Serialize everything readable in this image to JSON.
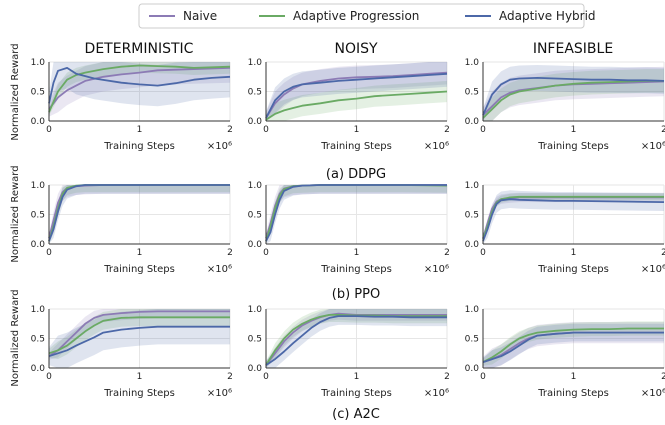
{
  "legend": {
    "placement": "top-center",
    "entries": [
      {
        "name": "Naive",
        "color": "#8c7bb5"
      },
      {
        "name": "Adaptive Progression",
        "color": "#6aaa64"
      },
      {
        "name": "Adaptive Hybrid",
        "color": "#4c68a8"
      }
    ]
  },
  "columns": [
    "DETERMINISTIC",
    "NOISY",
    "INFEASIBLE"
  ],
  "row_captions": [
    "(a) DDPG",
    "(b) PPO",
    "(c) A2C"
  ],
  "ylabel": "Normalized Reward",
  "xlabel": "Training Steps",
  "x_scale_label": "×10⁶",
  "xticks": [
    "0",
    "1",
    "2"
  ],
  "yticks": [
    "0.0",
    "0.5",
    "1.0"
  ],
  "chart_data": {
    "type": "line",
    "grid": true,
    "xlim": [
      0,
      2
    ],
    "ylim": [
      0,
      1
    ],
    "x_units": "training steps (×10⁶)",
    "series_order": [
      "Naive",
      "Adaptive Progression",
      "Adaptive Hybrid"
    ],
    "panels": [
      {
        "row": 0,
        "col": 0,
        "series": [
          {
            "name": "Naive",
            "x": [
              0,
              0.1,
              0.2,
              0.3,
              0.4,
              0.6,
              0.8,
              1.0,
              1.2,
              1.4,
              1.6,
              1.8,
              2.0
            ],
            "y": [
              0.2,
              0.4,
              0.52,
              0.6,
              0.68,
              0.75,
              0.79,
              0.82,
              0.86,
              0.87,
              0.88,
              0.89,
              0.9
            ],
            "spread": 0.25
          },
          {
            "name": "Adaptive Progression",
            "x": [
              0,
              0.1,
              0.2,
              0.3,
              0.4,
              0.6,
              0.8,
              1.0,
              1.2,
              1.4,
              1.6,
              1.8,
              2.0
            ],
            "y": [
              0.15,
              0.5,
              0.7,
              0.78,
              0.82,
              0.88,
              0.92,
              0.94,
              0.93,
              0.92,
              0.9,
              0.91,
              0.92
            ],
            "spread": 0.12
          },
          {
            "name": "Adaptive Hybrid",
            "x": [
              0,
              0.05,
              0.1,
              0.2,
              0.3,
              0.5,
              0.8,
              1.0,
              1.2,
              1.4,
              1.6,
              1.8,
              2.0
            ],
            "y": [
              0.3,
              0.65,
              0.85,
              0.9,
              0.8,
              0.72,
              0.65,
              0.62,
              0.6,
              0.64,
              0.7,
              0.73,
              0.75
            ],
            "spread": 0.35
          }
        ]
      },
      {
        "row": 0,
        "col": 1,
        "series": [
          {
            "name": "Naive",
            "x": [
              0,
              0.1,
              0.2,
              0.3,
              0.4,
              0.6,
              0.8,
              1.0,
              1.2,
              1.4,
              1.6,
              1.8,
              2.0
            ],
            "y": [
              0.05,
              0.3,
              0.45,
              0.55,
              0.62,
              0.68,
              0.72,
              0.74,
              0.75,
              0.76,
              0.78,
              0.8,
              0.82
            ],
            "spread": 0.2
          },
          {
            "name": "Adaptive Progression",
            "x": [
              0,
              0.1,
              0.2,
              0.3,
              0.4,
              0.6,
              0.8,
              1.0,
              1.2,
              1.4,
              1.6,
              1.8,
              2.0
            ],
            "y": [
              0.02,
              0.12,
              0.18,
              0.22,
              0.26,
              0.3,
              0.35,
              0.38,
              0.42,
              0.44,
              0.46,
              0.48,
              0.5
            ],
            "spread": 0.18
          },
          {
            "name": "Adaptive Hybrid",
            "x": [
              0,
              0.1,
              0.2,
              0.3,
              0.4,
              0.6,
              0.8,
              1.0,
              1.2,
              1.4,
              1.6,
              1.8,
              2.0
            ],
            "y": [
              0.05,
              0.35,
              0.5,
              0.58,
              0.62,
              0.65,
              0.68,
              0.7,
              0.72,
              0.74,
              0.76,
              0.78,
              0.8
            ],
            "spread": 0.22
          }
        ]
      },
      {
        "row": 0,
        "col": 2,
        "series": [
          {
            "name": "Naive",
            "x": [
              0,
              0.1,
              0.2,
              0.3,
              0.4,
              0.6,
              0.8,
              1.0,
              1.2,
              1.4,
              1.6,
              1.8,
              2.0
            ],
            "y": [
              0.1,
              0.25,
              0.4,
              0.48,
              0.52,
              0.56,
              0.6,
              0.62,
              0.63,
              0.64,
              0.65,
              0.66,
              0.67
            ],
            "spread": 0.25
          },
          {
            "name": "Adaptive Progression",
            "x": [
              0,
              0.1,
              0.2,
              0.3,
              0.4,
              0.6,
              0.8,
              1.0,
              1.2,
              1.4,
              1.6,
              1.8,
              2.0
            ],
            "y": [
              0.05,
              0.2,
              0.35,
              0.45,
              0.5,
              0.55,
              0.6,
              0.63,
              0.65,
              0.66,
              0.67,
              0.68,
              0.68
            ],
            "spread": 0.2
          },
          {
            "name": "Adaptive Hybrid",
            "x": [
              0,
              0.1,
              0.2,
              0.3,
              0.4,
              0.6,
              0.8,
              1.0,
              1.2,
              1.4,
              1.6,
              1.8,
              2.0
            ],
            "y": [
              0.1,
              0.45,
              0.62,
              0.7,
              0.72,
              0.73,
              0.72,
              0.71,
              0.7,
              0.7,
              0.69,
              0.69,
              0.68
            ],
            "spread": 0.22
          }
        ]
      },
      {
        "row": 1,
        "col": 0,
        "series": [
          {
            "name": "Naive",
            "x": [
              0,
              0.05,
              0.1,
              0.15,
              0.2,
              0.3,
              0.4,
              0.6,
              0.8,
              1.0,
              1.5,
              2.0
            ],
            "y": [
              0.1,
              0.4,
              0.7,
              0.88,
              0.95,
              0.98,
              0.99,
              1.0,
              1.0,
              1.0,
              1.0,
              1.0
            ],
            "spread": 0.15
          },
          {
            "name": "Adaptive Progression",
            "x": [
              0,
              0.05,
              0.1,
              0.15,
              0.2,
              0.3,
              0.4,
              0.6,
              0.8,
              1.0,
              1.5,
              2.0
            ],
            "y": [
              0.05,
              0.3,
              0.6,
              0.85,
              0.95,
              0.99,
              1.0,
              1.0,
              1.0,
              1.0,
              1.0,
              1.0
            ],
            "spread": 0.12
          },
          {
            "name": "Adaptive Hybrid",
            "x": [
              0,
              0.05,
              0.1,
              0.15,
              0.2,
              0.3,
              0.4,
              0.6,
              0.8,
              1.0,
              1.5,
              2.0
            ],
            "y": [
              0.05,
              0.25,
              0.55,
              0.8,
              0.92,
              0.98,
              1.0,
              1.0,
              1.0,
              1.0,
              1.0,
              1.0
            ],
            "spread": 0.15
          }
        ]
      },
      {
        "row": 1,
        "col": 1,
        "series": [
          {
            "name": "Naive",
            "x": [
              0,
              0.05,
              0.1,
              0.15,
              0.2,
              0.3,
              0.4,
              0.6,
              0.8,
              1.0,
              1.5,
              2.0
            ],
            "y": [
              0.1,
              0.35,
              0.65,
              0.85,
              0.94,
              0.98,
              0.99,
              1.0,
              1.0,
              1.0,
              1.0,
              1.0
            ],
            "spread": 0.15
          },
          {
            "name": "Adaptive Progression",
            "x": [
              0,
              0.05,
              0.1,
              0.15,
              0.2,
              0.3,
              0.4,
              0.6,
              0.8,
              1.0,
              1.5,
              2.0
            ],
            "y": [
              0.05,
              0.3,
              0.6,
              0.82,
              0.93,
              0.98,
              0.99,
              1.0,
              1.0,
              1.0,
              1.0,
              0.99
            ],
            "spread": 0.12
          },
          {
            "name": "Adaptive Hybrid",
            "x": [
              0,
              0.05,
              0.1,
              0.15,
              0.2,
              0.3,
              0.4,
              0.6,
              0.8,
              1.0,
              1.5,
              2.0
            ],
            "y": [
              0.05,
              0.2,
              0.5,
              0.75,
              0.9,
              0.97,
              0.99,
              1.0,
              1.0,
              1.0,
              1.0,
              1.0
            ],
            "spread": 0.15
          }
        ]
      },
      {
        "row": 1,
        "col": 2,
        "series": [
          {
            "name": "Naive",
            "x": [
              0,
              0.05,
              0.1,
              0.15,
              0.2,
              0.3,
              0.4,
              0.6,
              0.8,
              1.0,
              1.5,
              2.0
            ],
            "y": [
              0.1,
              0.35,
              0.6,
              0.72,
              0.76,
              0.78,
              0.79,
              0.79,
              0.79,
              0.79,
              0.79,
              0.79
            ],
            "spread": 0.08
          },
          {
            "name": "Adaptive Progression",
            "x": [
              0,
              0.05,
              0.1,
              0.15,
              0.2,
              0.3,
              0.4,
              0.6,
              0.8,
              1.0,
              1.5,
              2.0
            ],
            "y": [
              0.08,
              0.3,
              0.55,
              0.7,
              0.76,
              0.79,
              0.8,
              0.8,
              0.8,
              0.8,
              0.8,
              0.8
            ],
            "spread": 0.06
          },
          {
            "name": "Adaptive Hybrid",
            "x": [
              0,
              0.05,
              0.1,
              0.15,
              0.2,
              0.3,
              0.4,
              0.6,
              0.8,
              1.0,
              1.5,
              2.0
            ],
            "y": [
              0.05,
              0.25,
              0.5,
              0.68,
              0.74,
              0.76,
              0.75,
              0.74,
              0.73,
              0.73,
              0.72,
              0.71
            ],
            "spread": 0.15
          }
        ]
      },
      {
        "row": 2,
        "col": 0,
        "series": [
          {
            "name": "Naive",
            "x": [
              0,
              0.1,
              0.2,
              0.3,
              0.4,
              0.5,
              0.6,
              0.8,
              1.0,
              1.2,
              1.4,
              1.6,
              1.8,
              2.0
            ],
            "y": [
              0.2,
              0.3,
              0.45,
              0.6,
              0.75,
              0.85,
              0.9,
              0.93,
              0.95,
              0.96,
              0.96,
              0.96,
              0.96,
              0.96
            ],
            "spread": 0.12
          },
          {
            "name": "Adaptive Progression",
            "x": [
              0,
              0.1,
              0.2,
              0.3,
              0.4,
              0.5,
              0.6,
              0.8,
              1.0,
              1.2,
              1.4,
              1.6,
              1.8,
              2.0
            ],
            "y": [
              0.25,
              0.3,
              0.38,
              0.5,
              0.62,
              0.72,
              0.8,
              0.85,
              0.86,
              0.86,
              0.86,
              0.86,
              0.86,
              0.86
            ],
            "spread": 0.15
          },
          {
            "name": "Adaptive Hybrid",
            "x": [
              0,
              0.1,
              0.2,
              0.3,
              0.4,
              0.5,
              0.6,
              0.8,
              1.0,
              1.2,
              1.4,
              1.6,
              1.8,
              2.0
            ],
            "y": [
              0.2,
              0.25,
              0.3,
              0.38,
              0.45,
              0.52,
              0.6,
              0.65,
              0.68,
              0.7,
              0.7,
              0.7,
              0.7,
              0.7
            ],
            "spread": 0.3
          }
        ]
      },
      {
        "row": 2,
        "col": 1,
        "series": [
          {
            "name": "Naive",
            "x": [
              0,
              0.1,
              0.2,
              0.3,
              0.4,
              0.5,
              0.6,
              0.7,
              0.8,
              1.0,
              1.2,
              1.4,
              1.6,
              1.8,
              2.0
            ],
            "y": [
              0.05,
              0.25,
              0.45,
              0.6,
              0.72,
              0.8,
              0.86,
              0.9,
              0.92,
              0.9,
              0.9,
              0.9,
              0.9,
              0.9,
              0.9
            ],
            "spread": 0.1
          },
          {
            "name": "Adaptive Progression",
            "x": [
              0,
              0.1,
              0.2,
              0.3,
              0.4,
              0.5,
              0.6,
              0.7,
              0.8,
              1.0,
              1.2,
              1.4,
              1.6,
              1.8,
              2.0
            ],
            "y": [
              0.05,
              0.3,
              0.5,
              0.65,
              0.75,
              0.82,
              0.87,
              0.9,
              0.9,
              0.89,
              0.89,
              0.88,
              0.88,
              0.88,
              0.88
            ],
            "spread": 0.12
          },
          {
            "name": "Adaptive Hybrid",
            "x": [
              0,
              0.1,
              0.2,
              0.3,
              0.4,
              0.5,
              0.6,
              0.7,
              0.8,
              1.0,
              1.2,
              1.4,
              1.6,
              1.8,
              2.0
            ],
            "y": [
              0.05,
              0.15,
              0.28,
              0.42,
              0.55,
              0.68,
              0.78,
              0.85,
              0.88,
              0.88,
              0.87,
              0.87,
              0.86,
              0.86,
              0.86
            ],
            "spread": 0.15
          }
        ]
      },
      {
        "row": 2,
        "col": 2,
        "series": [
          {
            "name": "Naive",
            "x": [
              0,
              0.1,
              0.2,
              0.3,
              0.4,
              0.5,
              0.6,
              0.8,
              1.0,
              1.2,
              1.4,
              1.6,
              1.8,
              2.0
            ],
            "y": [
              0.1,
              0.15,
              0.22,
              0.32,
              0.42,
              0.5,
              0.55,
              0.58,
              0.6,
              0.6,
              0.6,
              0.6,
              0.6,
              0.6
            ],
            "spread": 0.18
          },
          {
            "name": "Adaptive Progression",
            "x": [
              0,
              0.1,
              0.2,
              0.3,
              0.4,
              0.5,
              0.6,
              0.8,
              1.0,
              1.2,
              1.4,
              1.6,
              1.8,
              2.0
            ],
            "y": [
              0.1,
              0.18,
              0.28,
              0.4,
              0.5,
              0.56,
              0.6,
              0.63,
              0.65,
              0.66,
              0.66,
              0.67,
              0.67,
              0.67
            ],
            "spread": 0.12
          },
          {
            "name": "Adaptive Hybrid",
            "x": [
              0,
              0.1,
              0.2,
              0.3,
              0.4,
              0.5,
              0.6,
              0.8,
              1.0,
              1.2,
              1.4,
              1.6,
              1.8,
              2.0
            ],
            "y": [
              0.1,
              0.15,
              0.2,
              0.28,
              0.38,
              0.48,
              0.55,
              0.58,
              0.6,
              0.6,
              0.6,
              0.6,
              0.6,
              0.6
            ],
            "spread": 0.15
          }
        ]
      }
    ]
  }
}
